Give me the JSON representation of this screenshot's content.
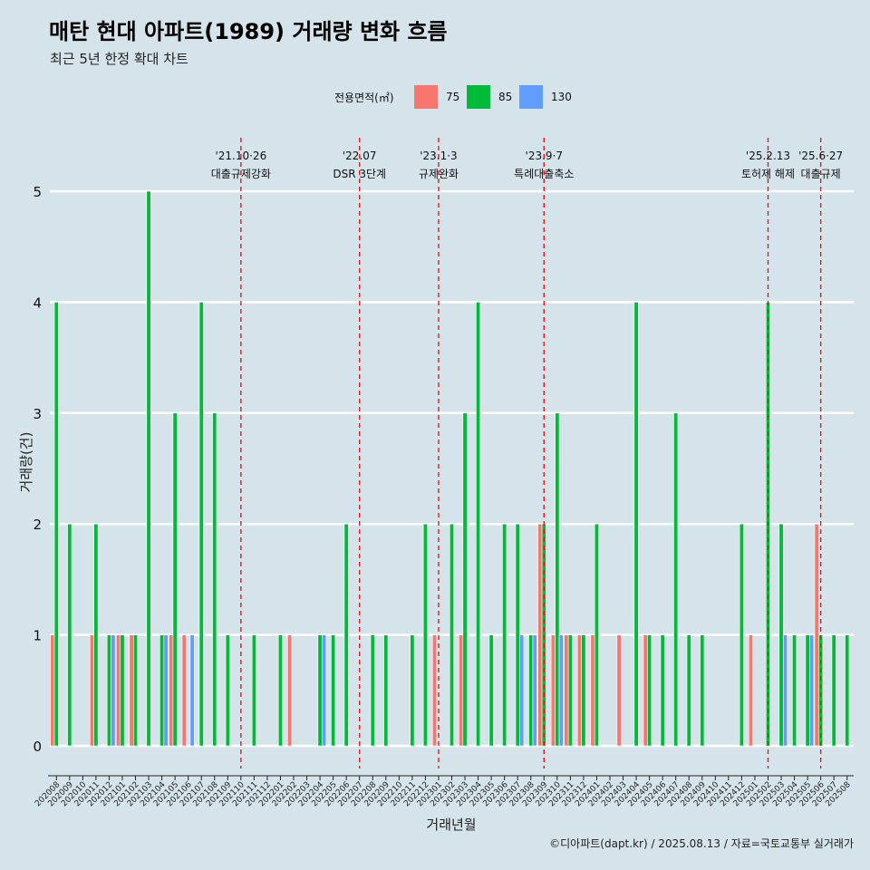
{
  "chart_data": {
    "type": "bar",
    "title": "매탄 현대 아파트(1989) 거래량 변화 흐름",
    "subtitle": "최근 5년 한정 확대 차트",
    "xlabel": "거래년월",
    "ylabel": "거래량(건)",
    "caption": "©디아파트(dapt.kr) / 2025.08.13 / 자료=국토교통부 실거래가",
    "legend": {
      "title": "전용면적(㎡)",
      "position": "top"
    },
    "ylim": [
      0,
      5
    ],
    "y_ticks": [
      0,
      1,
      2,
      3,
      4,
      5
    ],
    "grid": true,
    "x": [
      "202008",
      "202009",
      "202010",
      "202011",
      "202012",
      "202101",
      "202102",
      "202103",
      "202104",
      "202105",
      "202106",
      "202107",
      "202108",
      "202109",
      "202110",
      "202111",
      "202112",
      "202201",
      "202202",
      "202203",
      "202204",
      "202205",
      "202206",
      "202207",
      "202208",
      "202209",
      "202210",
      "202211",
      "202212",
      "202301",
      "202302",
      "202303",
      "202304",
      "202305",
      "202306",
      "202307",
      "202308",
      "202309",
      "202310",
      "202311",
      "202312",
      "202401",
      "202402",
      "202403",
      "202404",
      "202405",
      "202406",
      "202407",
      "202408",
      "202409",
      "202410",
      "202411",
      "202412",
      "202501",
      "202502",
      "202503",
      "202504",
      "202505",
      "202506",
      "202507",
      "202508"
    ],
    "series": [
      {
        "name": "75",
        "color": "#f8766d",
        "values": [
          1,
          0,
          0,
          1,
          0,
          1,
          1,
          0,
          0,
          1,
          1,
          0,
          0,
          0,
          0,
          0,
          0,
          0,
          1,
          0,
          0,
          0,
          0,
          0,
          0,
          0,
          0,
          0,
          0,
          1,
          0,
          1,
          0,
          0,
          0,
          0,
          0,
          2,
          1,
          1,
          1,
          1,
          0,
          1,
          0,
          1,
          0,
          0,
          0,
          0,
          0,
          0,
          0,
          1,
          0,
          0,
          0,
          0,
          2,
          0,
          0
        ]
      },
      {
        "name": "85",
        "color": "#00ba38",
        "values": [
          4,
          2,
          0,
          2,
          1,
          1,
          1,
          5,
          1,
          3,
          0,
          4,
          3,
          1,
          0,
          1,
          0,
          1,
          0,
          0,
          1,
          1,
          2,
          0,
          1,
          1,
          0,
          1,
          2,
          0,
          2,
          3,
          4,
          1,
          2,
          2,
          1,
          2,
          3,
          1,
          1,
          2,
          0,
          0,
          4,
          1,
          1,
          3,
          1,
          1,
          0,
          0,
          2,
          0,
          4,
          2,
          1,
          1,
          1,
          1,
          1
        ]
      },
      {
        "name": "130",
        "color": "#619cff",
        "values": [
          0,
          0,
          0,
          0,
          1,
          0,
          0,
          0,
          1,
          0,
          1,
          0,
          0,
          0,
          0,
          0,
          0,
          0,
          0,
          0,
          1,
          0,
          0,
          0,
          0,
          0,
          0,
          0,
          0,
          0,
          0,
          0,
          0,
          0,
          0,
          1,
          1,
          0,
          1,
          0,
          0,
          0,
          0,
          0,
          0,
          0,
          0,
          0,
          0,
          0,
          0,
          0,
          0,
          0,
          0,
          1,
          0,
          1,
          0,
          0,
          0
        ]
      }
    ],
    "annotations": [
      {
        "index": 14.5,
        "date": "'21.10·26",
        "label": "대출규제강화"
      },
      {
        "index": 23.5,
        "date": "'22.07",
        "label": "DSR 3단계"
      },
      {
        "index": 29.5,
        "date": "'23.1·3",
        "label": "규제완화"
      },
      {
        "index": 37.5,
        "date": "'23.9·7",
        "label": "특례대출축소"
      },
      {
        "index": 54.5,
        "date": "'25.2.13",
        "label": "토허제 해제"
      },
      {
        "index": 58.5,
        "date": "'25.6·27",
        "label": "대출규제"
      }
    ]
  }
}
